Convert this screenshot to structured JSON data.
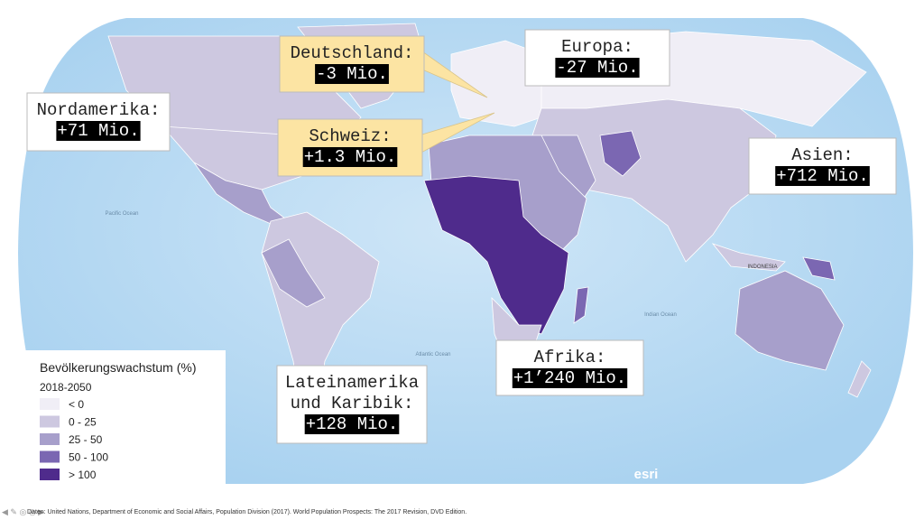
{
  "legend": {
    "title": "Bevölkerungswachstum (%)",
    "period": "2018-2050",
    "items": [
      {
        "label": "< 0",
        "color": "#f0eef6"
      },
      {
        "label": "0 - 25",
        "color": "#cdc8e0"
      },
      {
        "label": "25 - 50",
        "color": "#a79fcb"
      },
      {
        "label": "50 - 100",
        "color": "#7b67b2"
      },
      {
        "label": "> 100",
        "color": "#4f2b8c"
      }
    ]
  },
  "callouts": [
    {
      "region": [
        "Deutschland:"
      ],
      "value": "-3 Mio."
    },
    {
      "region": [
        "Schweiz:"
      ],
      "value": "+1.3 Mio."
    },
    {
      "region": [
        "Europa:"
      ],
      "value": "-27 Mio."
    },
    {
      "region": [
        "Nordamerika:"
      ],
      "value": "+71 Mio."
    },
    {
      "region": [
        "Asien:"
      ],
      "value": "+712 Mio."
    },
    {
      "region": [
        "Lateinamerika",
        "und Karibik:"
      ],
      "value": "+128 Mio."
    },
    {
      "region": [
        "Afrika:"
      ],
      "value": "+1’240 Mio."
    }
  ],
  "map_labels": [
    "Pacific Ocean",
    "Atlantic Ocean",
    "Indian Ocean",
    "INDONESIA"
  ],
  "attribution": "esri",
  "source": "Daten: United Nations, Department of Economic and Social Affairs, Population Division (2017). World Population Prospects: The 2017 Revision, DVD Edition."
}
